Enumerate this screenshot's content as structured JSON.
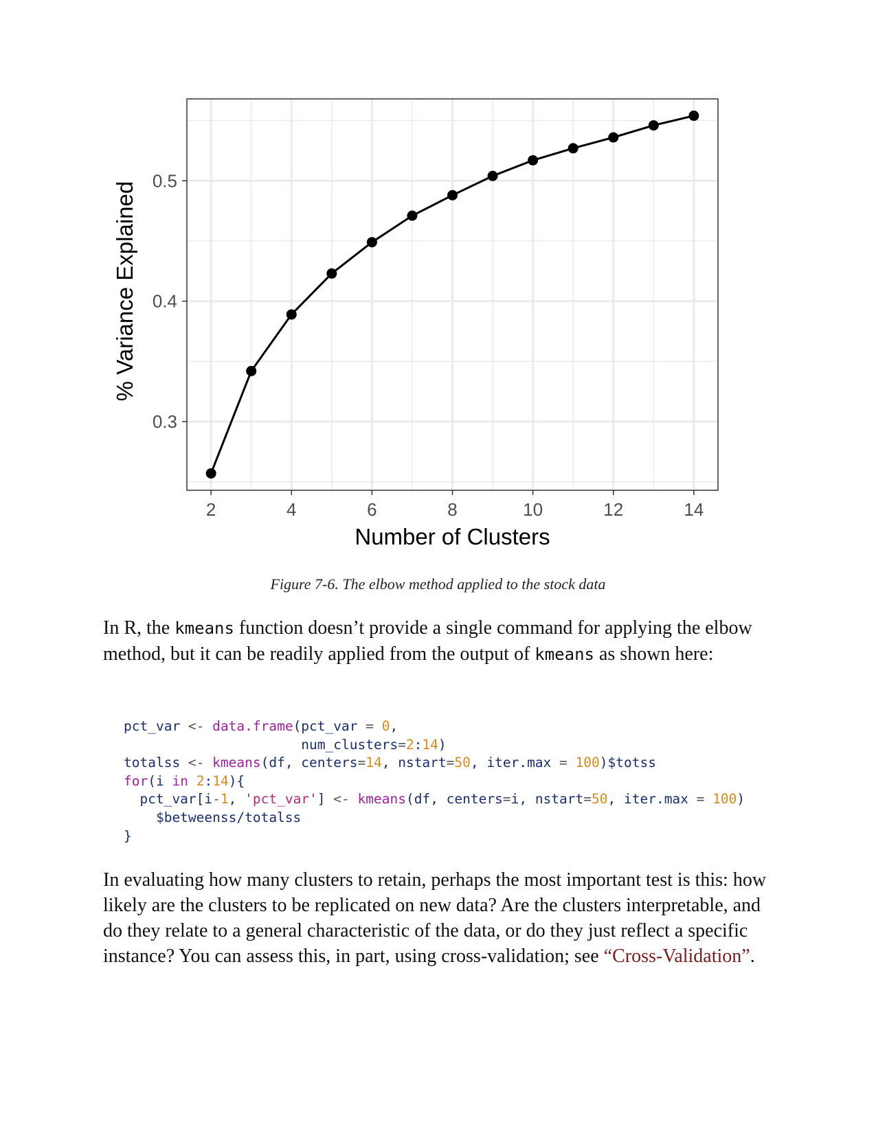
{
  "figure": {
    "caption": "Figure 7-6. The elbow method applied to the stock data"
  },
  "chart_data": {
    "type": "line",
    "xlabel": "Number of Clusters",
    "ylabel": "% Variance Explained",
    "x": [
      2,
      3,
      4,
      5,
      6,
      7,
      8,
      9,
      10,
      11,
      12,
      13,
      14
    ],
    "series": [
      {
        "values": [
          0.257,
          0.342,
          0.389,
          0.423,
          0.449,
          0.471,
          0.488,
          0.504,
          0.517,
          0.527,
          0.536,
          0.546,
          0.554
        ]
      }
    ],
    "xlim": [
      1.4,
      14.6
    ],
    "ylim": [
      0.243,
      0.568
    ],
    "xticks": [
      "2",
      "4",
      "6",
      "8",
      "10",
      "12",
      "14"
    ],
    "yticks": [
      "0.3",
      "0.4",
      "0.5"
    ],
    "grid": true,
    "colors": {
      "line": "#000000",
      "grid": "#ebebeb",
      "border": "#333333"
    }
  },
  "para1": {
    "t1": "In R, the ",
    "c1": "kmeans",
    "t2": " function doesn’t provide a single command for applying the elbow method, but it can be readily applied from the output of ",
    "c2": "kmeans",
    "t3": " as shown here:"
  },
  "code": {
    "lines": [
      [
        [
          "v",
          "pct_var "
        ],
        [
          "o",
          "<- "
        ],
        [
          "f",
          "data.frame"
        ],
        [
          "v",
          "(pct_var "
        ],
        [
          "o",
          "= "
        ],
        [
          "n",
          "0"
        ],
        [
          "v",
          ","
        ]
      ],
      [
        [
          "v",
          "                      num_clusters"
        ],
        [
          "o",
          "="
        ],
        [
          "n",
          "2"
        ],
        [
          "v",
          ":"
        ],
        [
          "n",
          "14"
        ],
        [
          "v",
          ")"
        ]
      ],
      [
        [
          "v",
          "totalss "
        ],
        [
          "o",
          "<- "
        ],
        [
          "f",
          "kmeans"
        ],
        [
          "v",
          "(df, centers"
        ],
        [
          "o",
          "="
        ],
        [
          "n",
          "14"
        ],
        [
          "v",
          ", nstart"
        ],
        [
          "o",
          "="
        ],
        [
          "n",
          "50"
        ],
        [
          "v",
          ", iter.max "
        ],
        [
          "o",
          "= "
        ],
        [
          "n",
          "100"
        ],
        [
          "v",
          ")$totss"
        ]
      ],
      [
        [
          "k",
          "for"
        ],
        [
          "v",
          "(i "
        ],
        [
          "k",
          "in "
        ],
        [
          "n",
          "2"
        ],
        [
          "v",
          ":"
        ],
        [
          "n",
          "14"
        ],
        [
          "v",
          "){"
        ]
      ],
      [
        [
          "v",
          "  pct_var[i"
        ],
        [
          "o",
          "-"
        ],
        [
          "n",
          "1"
        ],
        [
          "v",
          ", "
        ],
        [
          "s",
          "'pct_var'"
        ],
        [
          "v",
          "] "
        ],
        [
          "o",
          "<- "
        ],
        [
          "f",
          "kmeans"
        ],
        [
          "v",
          "(df, centers"
        ],
        [
          "o",
          "="
        ],
        [
          "v",
          "i, nstart"
        ],
        [
          "o",
          "="
        ],
        [
          "n",
          "50"
        ],
        [
          "v",
          ", iter.max "
        ],
        [
          "o",
          "= "
        ],
        [
          "n",
          "100"
        ],
        [
          "v",
          ")"
        ]
      ],
      [
        [
          "v",
          "    $betweenss/totalss"
        ]
      ],
      [
        [
          "v",
          "}"
        ]
      ]
    ]
  },
  "para2": {
    "t1": "In evaluating how many clusters to retain, perhaps the most important test is this: how likely are the clusters to be replicated on new data? Are the clusters interpretable, and do they relate to a general characteristic of the data, or do they just reflect a specific instance? You can assess this, in part, using cross-validation; see ",
    "link": "“Cross-Validation”",
    "t2": "."
  }
}
